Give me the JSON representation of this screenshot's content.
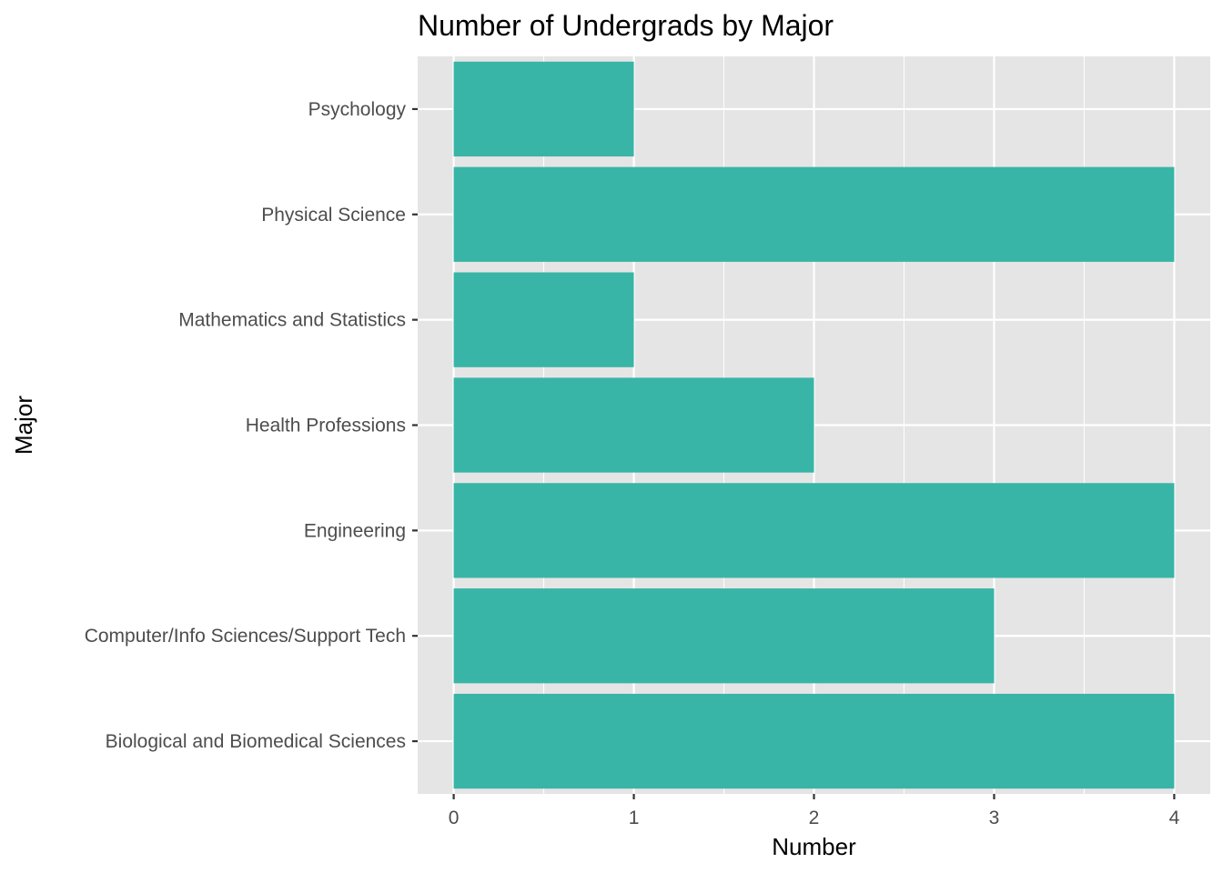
{
  "chart_data": {
    "type": "bar",
    "orientation": "horizontal",
    "title": "Number of Undergrads by Major",
    "xlabel": "Number",
    "ylabel": "Major",
    "categories": [
      "Biological and Biomedical Sciences",
      "Computer/Info Sciences/Support Tech",
      "Engineering",
      "Health Professions",
      "Mathematics and Statistics",
      "Physical Science",
      "Psychology"
    ],
    "values": [
      4,
      3,
      4,
      2,
      1,
      4,
      1
    ],
    "xlim": [
      -0.2,
      4.2
    ],
    "x_ticks": [
      0,
      1,
      2,
      3,
      4
    ],
    "grid": true,
    "legend": "none",
    "colors": {
      "bar": "#38b5a6",
      "panel": "#e5e5e5",
      "grid": "#ffffff"
    }
  }
}
